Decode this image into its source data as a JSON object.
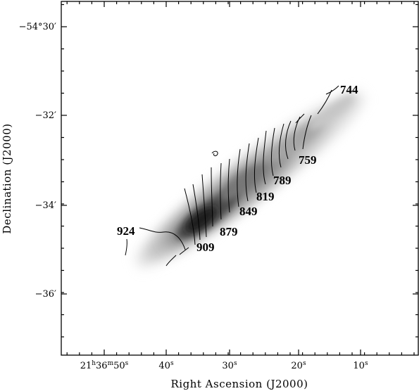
{
  "chart_data": {
    "type": "contour",
    "xlabel": "Right Ascension (J2000)",
    "ylabel": "Declination (J2000)",
    "x_ticks": [
      {
        "h": "21",
        "m": "36",
        "s": "50",
        "full": true
      },
      {
        "s": "40"
      },
      {
        "s": "30"
      },
      {
        "s": "20"
      },
      {
        "s": "10"
      }
    ],
    "y_ticks": [
      "−54°30′",
      "−32′",
      "−34′",
      "−36′"
    ],
    "velocity_labels": [
      "744",
      "759",
      "789",
      "819",
      "849",
      "879",
      "909",
      "924"
    ],
    "grayscale_colormap": "white-to-black",
    "contour_color": "#000000"
  }
}
